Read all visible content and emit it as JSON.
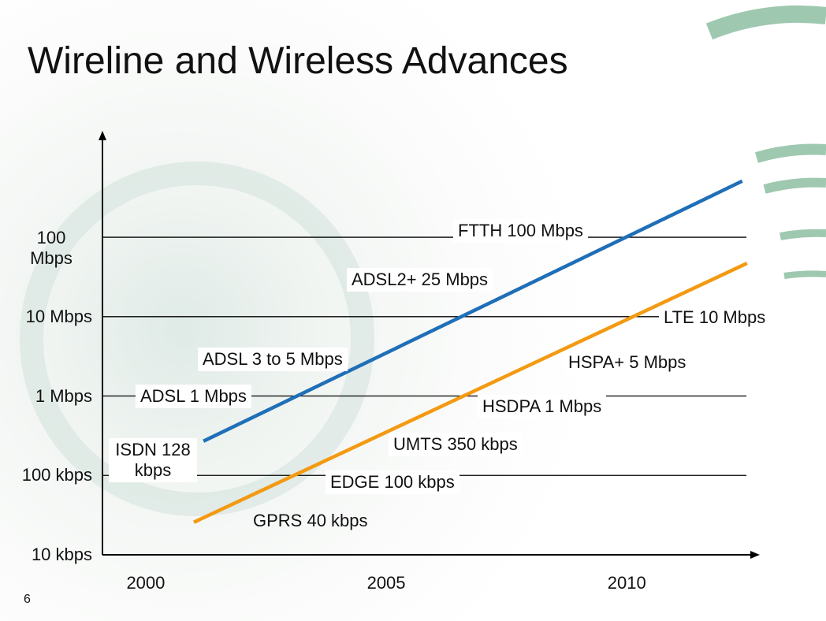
{
  "title": "Wireline and Wireless Advances",
  "slide_number": "6",
  "chart_data": {
    "type": "line",
    "log_y": true,
    "grid": true,
    "xlim": [
      1999.1,
      2012.7
    ],
    "xticks": [
      2000,
      2005,
      2010
    ],
    "ylim": [
      10000,
      2000000000
    ],
    "yticks": [
      {
        "value": 10000,
        "label": "10 kbps"
      },
      {
        "value": 100000,
        "label": "100 kbps"
      },
      {
        "value": 1000000,
        "label": "1 Mbps"
      },
      {
        "value": 10000000,
        "label": "10 Mbps"
      },
      {
        "value": 100000000,
        "label": "100 Mbps"
      }
    ],
    "series": [
      {
        "color": "#1f6fb8",
        "x": [
          2001.2,
          2012.4
        ],
        "values": [
          270000,
          510000000
        ]
      },
      {
        "color": "#f39a12",
        "x": [
          2001.0,
          2012.5
        ],
        "values": [
          25700,
          47000000
        ]
      }
    ],
    "annotations": [
      "FTTH 100 Mbps",
      "ADSL2+ 25 Mbps",
      "ADSL 3 to 5 Mbps",
      "ADSL 1 Mbps",
      "ISDN 128 kbps",
      "LTE 10 Mbps",
      "HSPA+ 5 Mbps",
      "HSDPA 1 Mbps",
      "UMTS 350 kbps",
      "EDGE 100 kbps",
      "GPRS 40 kbps"
    ]
  }
}
